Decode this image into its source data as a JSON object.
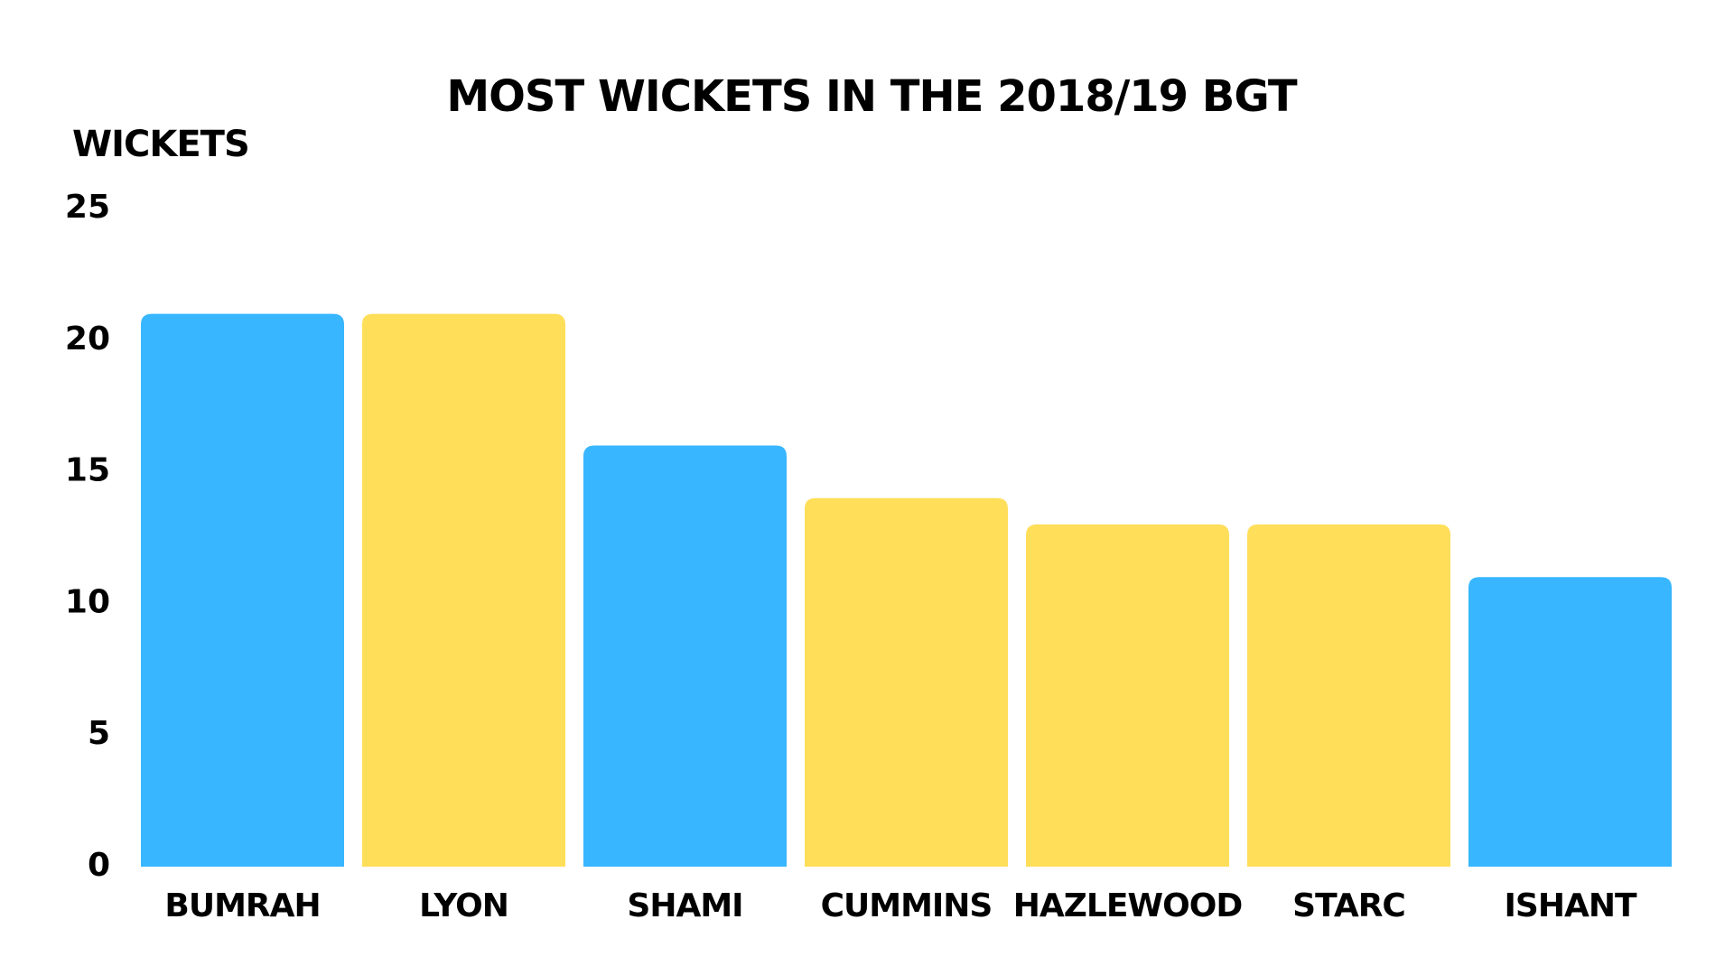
{
  "chart_data": {
    "type": "bar",
    "title": "MOST WICKETS IN THE 2018/19 BGT",
    "y_label": "WICKETS",
    "categories": [
      "BUMRAH",
      "LYON",
      "SHAMI",
      "CUMMINS",
      "HAZLEWOOD",
      "STARC",
      "ISHANT"
    ],
    "values": [
      21,
      21,
      16,
      14,
      13,
      13,
      11
    ],
    "colors": [
      "#38b6ff",
      "#ffde59",
      "#38b6ff",
      "#ffde59",
      "#ffde59",
      "#ffde59",
      "#38b6ff"
    ],
    "ylim": [
      0,
      25
    ],
    "yticks": [
      0,
      5,
      10,
      15,
      20,
      25
    ],
    "grid": false
  }
}
